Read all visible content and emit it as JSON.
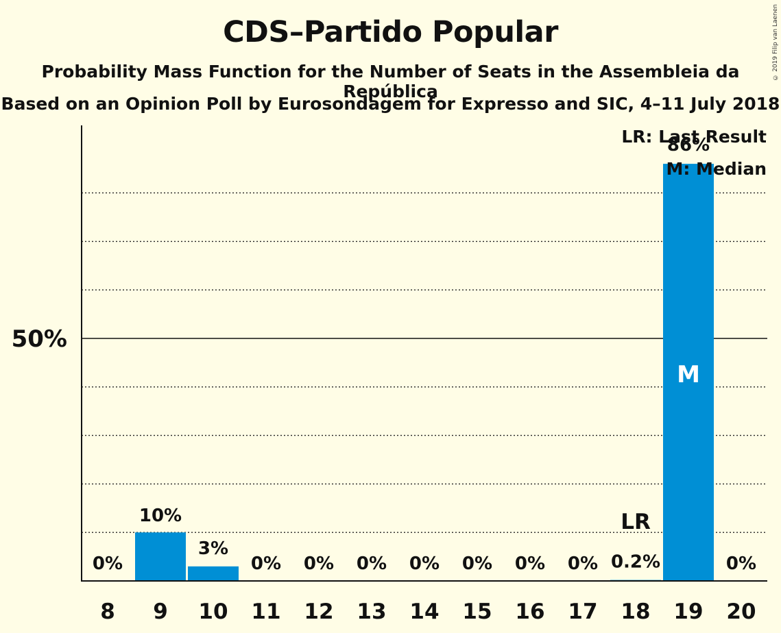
{
  "title": "CDS–Partido Popular",
  "subtitle1": "Probability Mass Function for the Number of Seats in the Assembleia da República",
  "subtitle2": "Based on an Opinion Poll by Eurosondagem for Expresso and SIC, 4–11 July 2018",
  "copyright": "© 2019 Filip van Laenen",
  "legend": {
    "lr": "LR: Last Result",
    "m": "M: Median"
  },
  "colors": {
    "bar": "#008FD5",
    "background": "#FFFDE6"
  },
  "chart_data": {
    "type": "bar",
    "categories": [
      "8",
      "9",
      "10",
      "11",
      "12",
      "13",
      "14",
      "15",
      "16",
      "17",
      "18",
      "19",
      "20"
    ],
    "values": [
      0,
      10,
      3,
      0,
      0,
      0,
      0,
      0,
      0,
      0,
      0.2,
      86,
      0
    ],
    "value_labels": [
      "0%",
      "10%",
      "3%",
      "0%",
      "0%",
      "0%",
      "0%",
      "0%",
      "0%",
      "0%",
      "0.2%",
      "86%",
      "0%"
    ],
    "ylim": [
      0,
      94
    ],
    "ytick_label": "50%",
    "ytick_value": 50,
    "gridlines": [
      10,
      20,
      30,
      40,
      60,
      70,
      80
    ],
    "last_result": "18",
    "last_result_marker": "LR",
    "median": "19",
    "median_marker": "M"
  }
}
